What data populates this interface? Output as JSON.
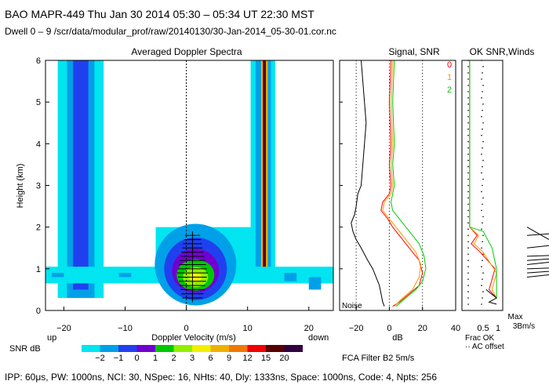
{
  "header": {
    "line1": "BAO   MAPR-449   Thu Jan 30 2014 05:30 – 05:34 UT 22:30 MST",
    "line2": "Dwell   0 –  9    /scr/data/modular_prof/raw/20140130/30-Jan-2014_05-30-01.cor.nc"
  },
  "footer": "IPP:  60μs,   PW: 1000ns,   NCI:  30,   NSpec: 16,  NHts: 40,   Dly: 1333ns,   Space: 1000ns,   Code: 4,   Npts: 256",
  "colors": {
    "snr_scale": [
      "#00e5f0",
      "#00a0e8",
      "#2040f0",
      "#7000d0",
      "#00c800",
      "#90f000",
      "#f0f000",
      "#f0b000",
      "#f07800",
      "#f00000",
      "#580000",
      "#300040"
    ],
    "signal_line": "#000000",
    "snr0": "#ff0000",
    "snr1": "#ff9900",
    "snr2": "#00cc00"
  },
  "chart_data": [
    {
      "type": "heatmap",
      "title": "Averaged Doppler Spectra",
      "xlabel": "Doppler Velocity (m/s)",
      "ylabel": "Height (km)",
      "xlim": [
        -23,
        24
      ],
      "ylim": [
        0,
        6
      ],
      "xticks": [
        -20,
        -10,
        0,
        10,
        20
      ],
      "yticks": [
        0,
        1,
        2,
        3,
        4,
        5,
        6
      ],
      "x_left_label": "up",
      "x_right_label": "down",
      "colorbar_label": "SNR dB",
      "colorbar_ticks": [
        "−2",
        "−1",
        "0",
        "1",
        "2",
        "3",
        "6",
        "9",
        "12",
        "15",
        "20"
      ],
      "features": [
        {
          "name": "band near -17 m/s",
          "x": [
            -20,
            -14
          ],
          "y": [
            0.2,
            6.0
          ]
        },
        {
          "name": "band near 12 m/s",
          "x": [
            11,
            14
          ],
          "y": [
            0.7,
            6.0
          ]
        },
        {
          "name": "atmospheric echo near 0 m/s",
          "x": [
            -5,
            6
          ],
          "y": [
            0.1,
            2.0
          ]
        }
      ]
    },
    {
      "type": "line",
      "title": "Signal, SNR",
      "xlabel": "dB",
      "xlim": [
        -30,
        40
      ],
      "ylim": [
        0,
        6
      ],
      "xticks": [
        -20,
        0,
        20,
        40
      ],
      "annotation": "Noise",
      "series": [
        {
          "name": "Signal",
          "x": [
            -17,
            -16,
            -15,
            -14,
            -15,
            -16,
            -17,
            -19,
            -20,
            -21,
            -23,
            -22,
            -20,
            -17,
            -13,
            -10,
            -8,
            -6,
            -5,
            -4,
            -3
          ],
          "y": [
            6.0,
            5.5,
            5.0,
            4.5,
            4.0,
            3.5,
            3.0,
            2.8,
            2.5,
            2.3,
            2.1,
            1.9,
            1.7,
            1.5,
            1.2,
            1.0,
            0.8,
            0.6,
            0.4,
            0.2,
            0.1
          ]
        },
        {
          "name": "0",
          "x": [
            1,
            0,
            1,
            0,
            1,
            0,
            -4,
            -5,
            -1,
            2,
            6,
            10,
            14,
            18,
            20,
            18,
            12,
            6,
            2
          ],
          "y": [
            6.0,
            5.0,
            4.0,
            3.5,
            3.0,
            2.8,
            2.6,
            2.4,
            2.2,
            2.0,
            1.8,
            1.6,
            1.4,
            1.2,
            0.9,
            0.6,
            0.4,
            0.2,
            0.1
          ]
        },
        {
          "name": "1",
          "x": [
            2,
            1,
            2,
            1,
            2,
            1,
            -3,
            -4,
            0,
            4,
            8,
            12,
            16,
            19,
            18,
            14,
            8,
            3
          ],
          "y": [
            6.0,
            5.0,
            4.0,
            3.5,
            3.0,
            2.8,
            2.6,
            2.4,
            2.2,
            2.0,
            1.8,
            1.6,
            1.4,
            1.1,
            0.8,
            0.5,
            0.3,
            0.1
          ]
        },
        {
          "name": "2",
          "x": [
            3,
            2,
            3,
            2,
            3,
            2,
            1,
            2,
            6,
            10,
            14,
            18,
            21,
            22,
            20,
            16,
            10,
            4
          ],
          "y": [
            6.0,
            5.0,
            4.0,
            3.5,
            3.0,
            2.8,
            2.6,
            2.4,
            2.2,
            2.0,
            1.8,
            1.6,
            1.3,
            1.0,
            0.7,
            0.5,
            0.3,
            0.1
          ]
        }
      ]
    },
    {
      "type": "line",
      "title": "OK SNR,Winds",
      "xticks": [
        "0.5",
        "1"
      ],
      "xlabel": "Frac OK",
      "legend": [
        "0",
        "1",
        "2"
      ],
      "note": "AC offset",
      "series": [
        {
          "name": "0",
          "x": [
            0.05,
            0.05,
            0.3,
            0.1,
            0.4,
            0.9,
            0.7,
            0.95
          ],
          "y": [
            6.0,
            2.0,
            1.8,
            1.6,
            1.4,
            1.0,
            0.5,
            0.3
          ]
        },
        {
          "name": "1",
          "x": [
            0.05,
            0.05,
            0.35,
            0.2,
            0.5,
            0.95,
            0.8,
            0.95
          ],
          "y": [
            6.0,
            2.0,
            1.8,
            1.6,
            1.4,
            0.9,
            0.5,
            0.3
          ]
        },
        {
          "name": "2",
          "x": [
            0.05,
            0.05,
            0.5,
            0.8,
            0.95,
            0.95
          ],
          "y": [
            6.0,
            2.0,
            1.9,
            1.5,
            1.0,
            0.3
          ]
        }
      ]
    },
    {
      "type": "barbs",
      "title": "Winds",
      "legend_label": "Max",
      "legend_value": "3Bm/s",
      "barbs_height_km": [
        0.8,
        0.9,
        1.0,
        1.1,
        1.2,
        1.3,
        1.5,
        1.8
      ]
    }
  ],
  "misc": {
    "filter_label": "FCA Filter B2   5m/s"
  }
}
